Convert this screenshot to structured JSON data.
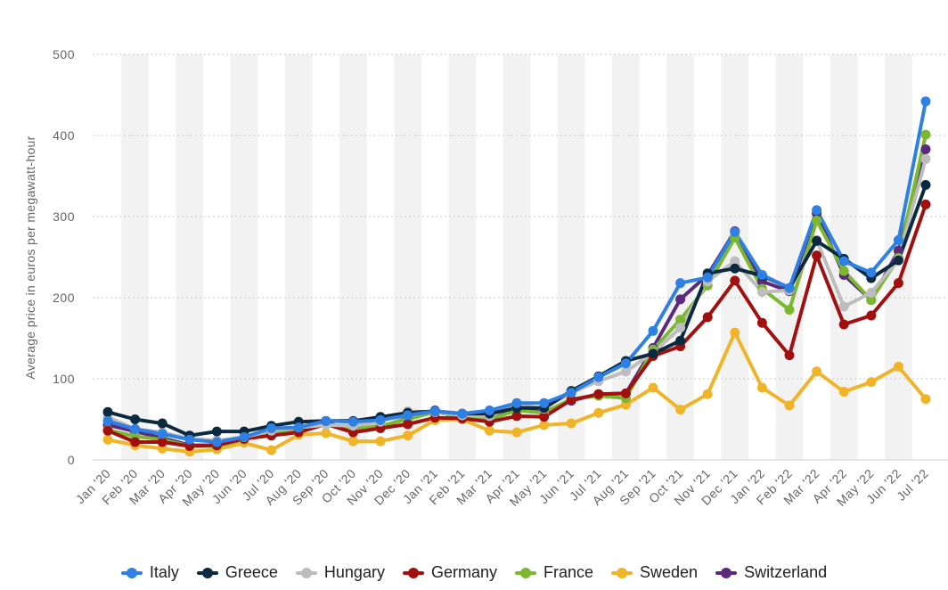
{
  "chart_data": {
    "type": "line",
    "ylabel": "Average price in euros per megawatt-hour",
    "ylim": [
      0,
      500
    ],
    "yticks": [
      "0",
      "100",
      "200",
      "300",
      "400",
      "500"
    ],
    "grid": "horizontal dotted",
    "legend_position": "bottom",
    "categories": [
      "Jan '20",
      "Feb '20",
      "Mar '20",
      "Apr '20",
      "May '20",
      "Jun '20",
      "Jul '20",
      "Aug '20",
      "Sep '20",
      "Oct '20",
      "Nov '20",
      "Dec '20",
      "Jan '21",
      "Feb '21",
      "Mar '21",
      "Apr '21",
      "May '21",
      "Jun '21",
      "Jul '21",
      "Aug '21",
      "Sep '21",
      "Oct '21",
      "Nov '21",
      "Dec '21",
      "Jan '22",
      "Feb '22",
      "Mar '22",
      "Apr '22",
      "May '22",
      "Jun '22",
      "Jul '22"
    ],
    "series": [
      {
        "name": "Italy",
        "color": "#2f80e4",
        "values": [
          48,
          38,
          32,
          25,
          22,
          28,
          39,
          40,
          48,
          47,
          49,
          55,
          60,
          57,
          61,
          70,
          70,
          83,
          102,
          119,
          159,
          218,
          225,
          281,
          228,
          212,
          308,
          245,
          231,
          271,
          442
        ]
      },
      {
        "name": "Greece",
        "color": "#0b2a40",
        "values": [
          59,
          50,
          45,
          30,
          35,
          35,
          42,
          47,
          48,
          48,
          53,
          58,
          60,
          57,
          57,
          64,
          64,
          85,
          103,
          122,
          131,
          147,
          230,
          236,
          227,
          212,
          270,
          248,
          224,
          246,
          339
        ]
      },
      {
        "name": "Hungary",
        "color": "#bdbdbd",
        "values": [
          53,
          38,
          34,
          26,
          24,
          28,
          36,
          40,
          43,
          42,
          47,
          60,
          59,
          55,
          54,
          68,
          63,
          83,
          97,
          109,
          132,
          163,
          220,
          245,
          207,
          209,
          271,
          189,
          206,
          247,
          371
        ]
      },
      {
        "name": "Germany",
        "color": "#a10f0f",
        "values": [
          36,
          22,
          22,
          17,
          18,
          26,
          30,
          34,
          44,
          34,
          39,
          44,
          52,
          51,
          47,
          54,
          53,
          74,
          81,
          82,
          128,
          140,
          176,
          221,
          169,
          129,
          252,
          167,
          178,
          218,
          315
        ]
      },
      {
        "name": "France",
        "color": "#7cb82f",
        "values": [
          37,
          29,
          25,
          17,
          17,
          25,
          34,
          36,
          44,
          38,
          42,
          50,
          59,
          53,
          50,
          61,
          58,
          75,
          79,
          76,
          136,
          173,
          215,
          274,
          211,
          185,
          295,
          233,
          197,
          249,
          401
        ]
      },
      {
        "name": "Sweden",
        "color": "#f0b429",
        "values": [
          25,
          18,
          14,
          10,
          13,
          21,
          12,
          31,
          33,
          23,
          23,
          30,
          49,
          50,
          36,
          34,
          43,
          45,
          58,
          68,
          89,
          62,
          81,
          157,
          89,
          67,
          109,
          84,
          96,
          115,
          75
        ]
      },
      {
        "name": "Switzerland",
        "color": "#5b2a7d",
        "values": [
          43,
          35,
          27,
          18,
          18,
          26,
          34,
          37,
          46,
          36,
          41,
          51,
          61,
          54,
          55,
          63,
          59,
          73,
          81,
          82,
          138,
          198,
          228,
          282,
          220,
          208,
          304,
          228,
          197,
          258,
          383
        ]
      }
    ]
  }
}
